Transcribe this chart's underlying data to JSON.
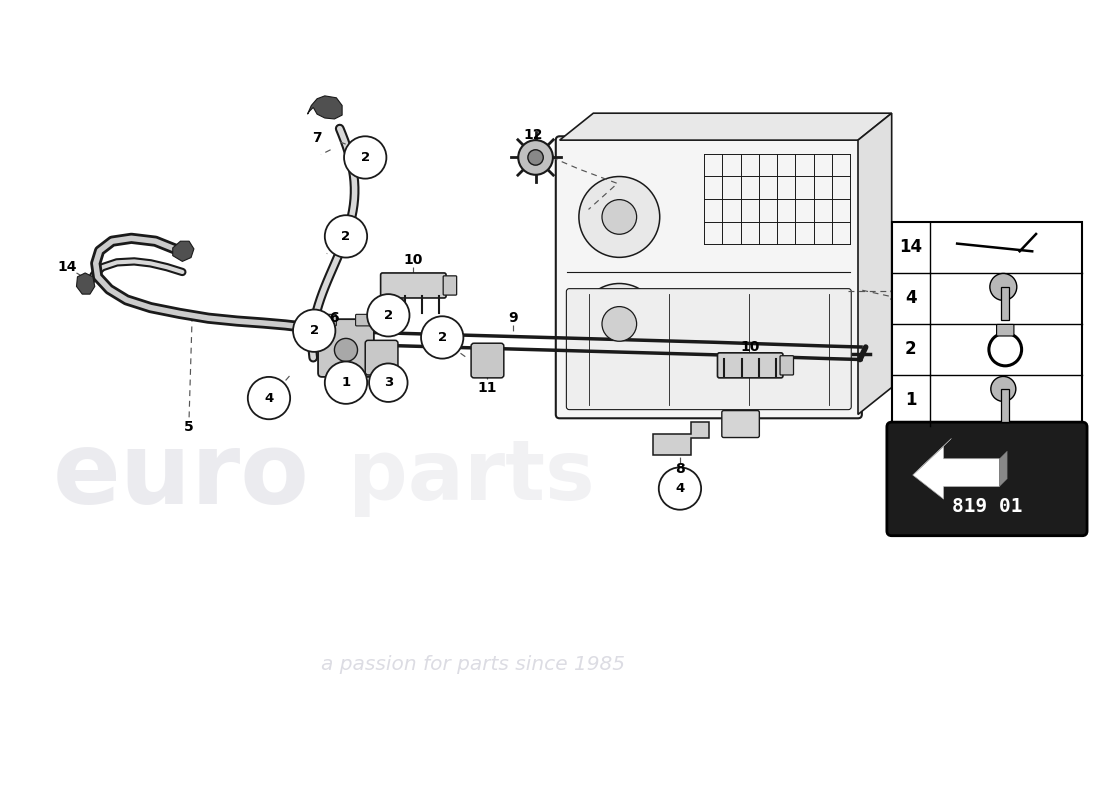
{
  "bg_color": "#ffffff",
  "lc": "#1a1a1a",
  "dc": "#555555",
  "part_number": "819 01",
  "legend_qtys": [
    "14",
    "4",
    "2",
    "1"
  ],
  "watermark_color": "#c0c0cc",
  "watermark_orange": "#c8a060"
}
